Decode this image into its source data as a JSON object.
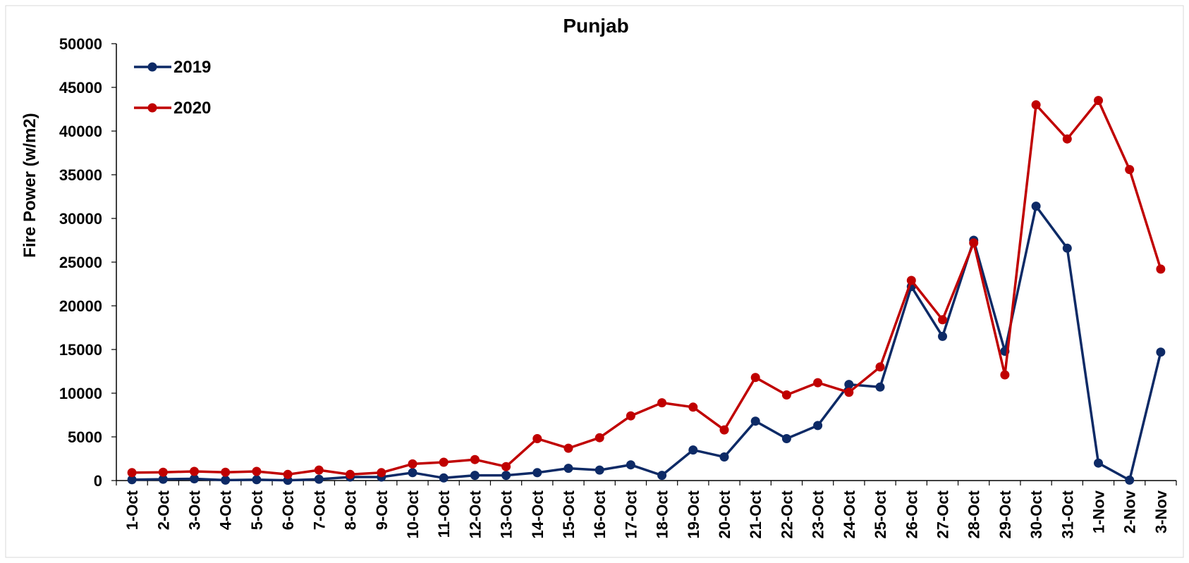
{
  "chart_data": {
    "type": "line",
    "title": "Punjab",
    "xlabel": "",
    "ylabel": "Fire Power (w/m2)",
    "ylim": [
      0,
      50000
    ],
    "yticks": [
      0,
      5000,
      10000,
      15000,
      20000,
      25000,
      30000,
      35000,
      40000,
      45000,
      50000
    ],
    "grid": false,
    "legend_position": "top-left",
    "categories": [
      "1-Oct",
      "2-Oct",
      "3-Oct",
      "4-Oct",
      "5-Oct",
      "6-Oct",
      "7-Oct",
      "8-Oct",
      "9-Oct",
      "10-Oct",
      "11-Oct",
      "12-Oct",
      "13-Oct",
      "14-Oct",
      "15-Oct",
      "16-Oct",
      "17-Oct",
      "18-Oct",
      "19-Oct",
      "20-Oct",
      "21-Oct",
      "22-Oct",
      "23-Oct",
      "24-Oct",
      "25-Oct",
      "26-Oct",
      "27-Oct",
      "28-Oct",
      "29-Oct",
      "30-Oct",
      "31-Oct",
      "1-Nov",
      "2-Nov",
      "3-Nov"
    ],
    "series": [
      {
        "name": "2019",
        "color": "#0d2a66",
        "values": [
          100,
          150,
          200,
          50,
          100,
          30,
          150,
          400,
          400,
          900,
          300,
          600,
          600,
          900,
          1400,
          1200,
          1800,
          600,
          3500,
          2700,
          6800,
          4800,
          6300,
          11000,
          10700,
          22200,
          16500,
          27500,
          14800,
          31400,
          26600,
          2000,
          50,
          14700
        ]
      },
      {
        "name": "2020",
        "color": "#c00000",
        "values": [
          900,
          950,
          1050,
          950,
          1050,
          700,
          1200,
          700,
          900,
          1900,
          2100,
          2400,
          1600,
          4800,
          3700,
          4900,
          7400,
          8900,
          8400,
          5800,
          11800,
          9800,
          11200,
          10100,
          13000,
          22900,
          18400,
          27200,
          12100,
          43000,
          39100,
          43500,
          35600,
          24200
        ]
      }
    ]
  }
}
